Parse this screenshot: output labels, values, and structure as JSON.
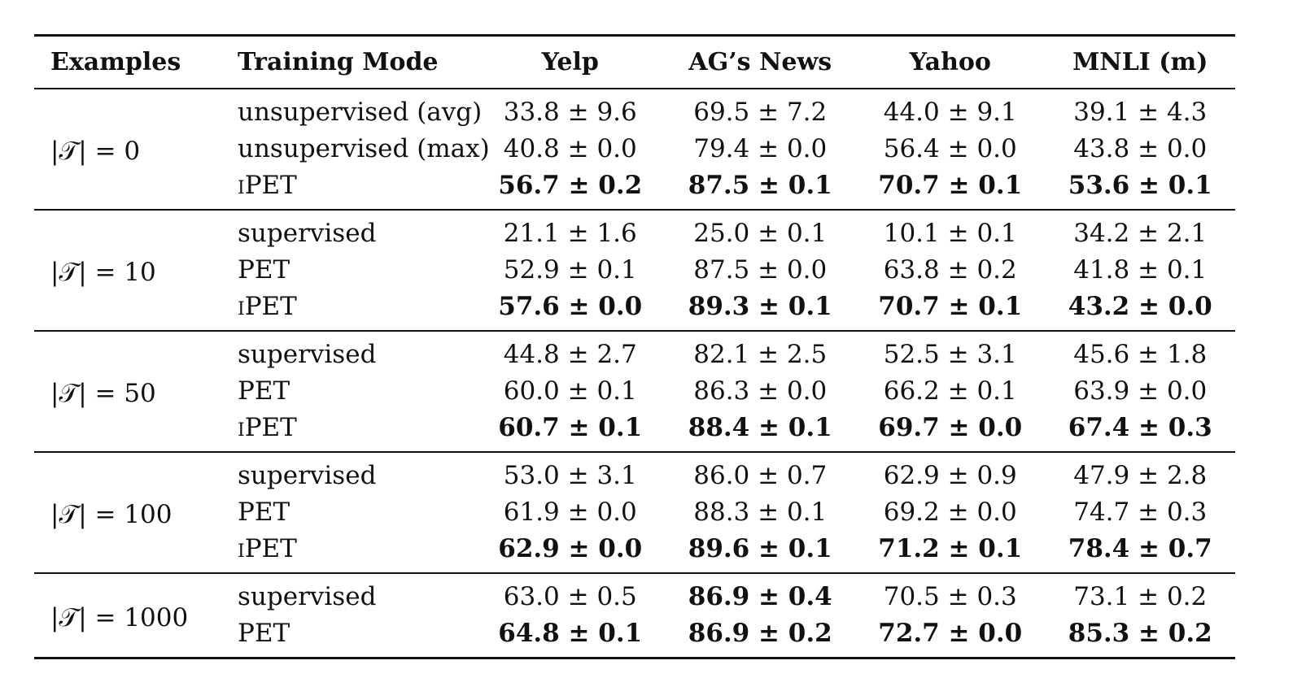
{
  "table": {
    "headers": [
      "Examples",
      "Training Mode",
      "Yelp",
      "AG’s News",
      "Yahoo",
      "MNLI (m)"
    ],
    "groups": [
      {
        "examples": "|𝒯| = 0",
        "rows": [
          {
            "mode": "unsupervised (avg)",
            "values": [
              "33.8 ± 9.6",
              "69.5 ± 7.2",
              "44.0 ± 9.1",
              "39.1 ± 4.3"
            ],
            "bold": [
              false,
              false,
              false,
              false
            ]
          },
          {
            "mode": "unsupervised (max)",
            "values": [
              "40.8 ± 0.0",
              "79.4 ± 0.0",
              "56.4 ± 0.0",
              "43.8 ± 0.0"
            ],
            "bold": [
              false,
              false,
              false,
              false
            ]
          },
          {
            "mode": "iPET",
            "values": [
              "56.7 ± 0.2",
              "87.5 ± 0.1",
              "70.7 ± 0.1",
              "53.6 ± 0.1"
            ],
            "bold": [
              true,
              true,
              true,
              true
            ]
          }
        ]
      },
      {
        "examples": "|𝒯| = 10",
        "rows": [
          {
            "mode": "supervised",
            "values": [
              "21.1 ± 1.6",
              "25.0 ± 0.1",
              "10.1 ± 0.1",
              "34.2 ± 2.1"
            ],
            "bold": [
              false,
              false,
              false,
              false
            ]
          },
          {
            "mode": "PET",
            "values": [
              "52.9 ± 0.1",
              "87.5 ± 0.0",
              "63.8 ± 0.2",
              "41.8 ± 0.1"
            ],
            "bold": [
              false,
              false,
              false,
              false
            ]
          },
          {
            "mode": "iPET",
            "values": [
              "57.6 ± 0.0",
              "89.3 ± 0.1",
              "70.7 ± 0.1",
              "43.2 ± 0.0"
            ],
            "bold": [
              true,
              true,
              true,
              true
            ]
          }
        ]
      },
      {
        "examples": "|𝒯| = 50",
        "rows": [
          {
            "mode": "supervised",
            "values": [
              "44.8 ± 2.7",
              "82.1 ± 2.5",
              "52.5 ± 3.1",
              "45.6 ± 1.8"
            ],
            "bold": [
              false,
              false,
              false,
              false
            ]
          },
          {
            "mode": "PET",
            "values": [
              "60.0 ± 0.1",
              "86.3 ± 0.0",
              "66.2 ± 0.1",
              "63.9 ± 0.0"
            ],
            "bold": [
              false,
              false,
              false,
              false
            ]
          },
          {
            "mode": "iPET",
            "values": [
              "60.7 ± 0.1",
              "88.4 ± 0.1",
              "69.7 ± 0.0",
              "67.4 ± 0.3"
            ],
            "bold": [
              true,
              true,
              true,
              true
            ]
          }
        ]
      },
      {
        "examples": "|𝒯| = 100",
        "rows": [
          {
            "mode": "supervised",
            "values": [
              "53.0 ± 3.1",
              "86.0 ± 0.7",
              "62.9 ± 0.9",
              "47.9 ± 2.8"
            ],
            "bold": [
              false,
              false,
              false,
              false
            ]
          },
          {
            "mode": "PET",
            "values": [
              "61.9 ± 0.0",
              "88.3 ± 0.1",
              "69.2 ± 0.0",
              "74.7 ± 0.3"
            ],
            "bold": [
              false,
              false,
              false,
              false
            ]
          },
          {
            "mode": "iPET",
            "values": [
              "62.9 ± 0.0",
              "89.6 ± 0.1",
              "71.2 ± 0.1",
              "78.4 ± 0.7"
            ],
            "bold": [
              true,
              true,
              true,
              true
            ]
          }
        ]
      },
      {
        "examples": "|𝒯| = 1000",
        "rows": [
          {
            "mode": "supervised",
            "values": [
              "63.0 ± 0.5",
              "86.9 ± 0.4",
              "70.5 ± 0.3",
              "73.1 ± 0.2"
            ],
            "bold": [
              false,
              true,
              false,
              false
            ]
          },
          {
            "mode": "PET",
            "values": [
              "64.8 ± 0.1",
              "86.9 ± 0.2",
              "72.7 ± 0.0",
              "85.3 ± 0.2"
            ],
            "bold": [
              true,
              true,
              true,
              true
            ]
          }
        ]
      }
    ]
  }
}
